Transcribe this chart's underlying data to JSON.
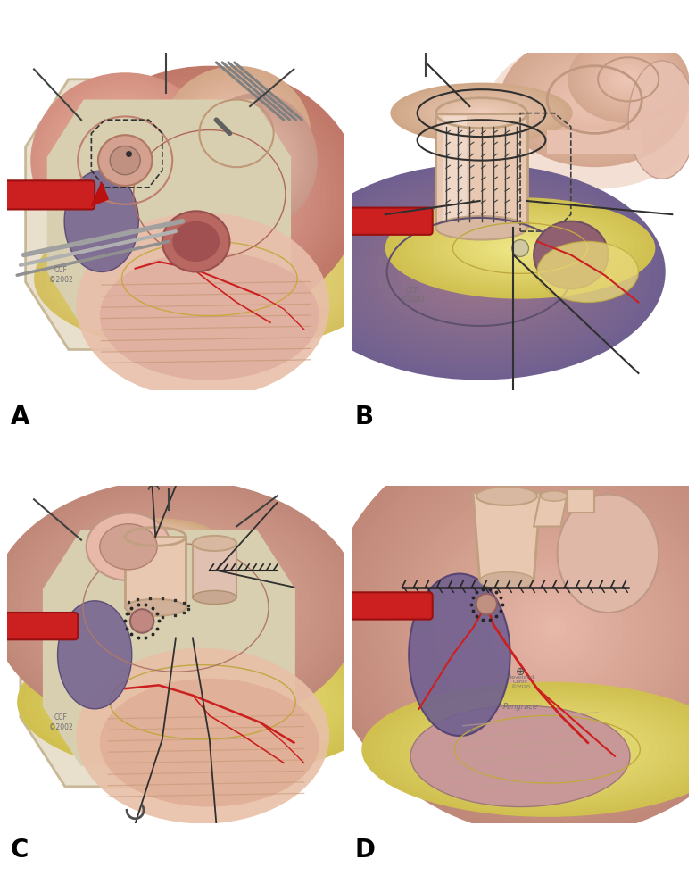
{
  "background_color": "#ffffff",
  "panel_labels": [
    "A",
    "B",
    "C",
    "D"
  ],
  "panel_label_fontsize": 20,
  "panel_label_fontweight": "bold",
  "figure_width": 7.8,
  "figure_height": 9.81,
  "drape_color": "#e8e0cc",
  "drape_edge": "#c8b898",
  "field_color": "#d8ceb0",
  "skin_light": "#f0d8c0",
  "heart_pink": "#e0a090",
  "heart_mid": "#c88878",
  "heart_dark": "#a06858",
  "atrium_pink": "#e8b8a8",
  "vessel_cream": "#e8cdb8",
  "vessel_rim": "#c8a888",
  "fat_yellow": "#e8d878",
  "fat_edge": "#c8b848",
  "purple_heart": "#706090",
  "purple_edge": "#504070",
  "red_vessel": "#cc2020",
  "coronary_red": "#cc3030",
  "suture_dark": "#252525",
  "instrument_gray": "#909090",
  "instrument_dark": "#707070",
  "white_tissue": "#f8f0e8"
}
